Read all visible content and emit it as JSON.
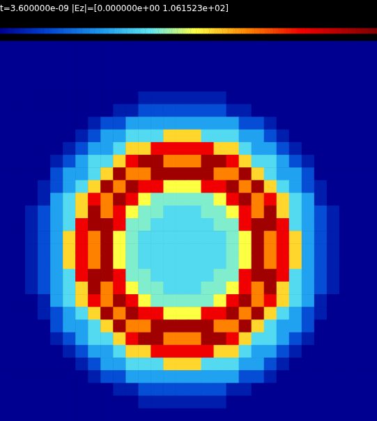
{
  "chart_data": {
    "type": "heatmap",
    "title": "t=3.600000e-09 |Ez|=[0.000000e+00 1.061523e+02]",
    "colorbar": {
      "range": [
        0,
        106.1523
      ]
    },
    "tick_labels": false,
    "cells": [
      [
        0,
        0,
        0,
        0,
        0,
        0,
        0,
        0,
        0,
        0,
        0,
        0,
        0,
        0,
        0,
        0,
        0,
        0,
        0,
        0,
        0,
        0,
        0,
        0,
        0,
        0,
        0,
        0,
        0,
        0
      ],
      [
        0,
        0,
        0,
        0,
        0,
        0,
        0,
        0,
        0,
        0,
        0,
        0,
        0,
        0,
        0,
        0,
        0,
        0,
        0,
        0,
        0,
        0,
        0,
        0,
        0,
        0,
        0,
        0,
        0,
        0
      ],
      [
        0,
        0,
        0,
        0,
        0,
        0,
        0,
        0,
        0,
        0,
        0,
        0,
        0,
        0,
        0,
        0,
        0,
        0,
        0,
        0,
        0,
        0,
        0,
        0,
        0,
        0,
        0,
        0,
        0,
        0
      ],
      [
        0,
        0,
        0,
        0,
        0,
        0,
        0,
        0,
        0,
        0,
        0,
        0,
        0,
        0,
        0,
        0,
        0,
        0,
        0,
        0,
        0,
        0,
        0,
        0,
        0,
        0,
        0,
        0,
        0,
        0
      ],
      [
        0,
        0,
        0,
        0,
        0,
        0,
        0,
        0,
        0,
        0,
        0,
        6,
        6,
        6,
        6,
        6,
        6,
        6,
        0,
        0,
        0,
        0,
        0,
        0,
        0,
        0,
        0,
        0,
        0,
        0
      ],
      [
        0,
        0,
        0,
        0,
        0,
        0,
        0,
        0,
        0,
        6,
        6,
        15,
        15,
        15,
        15,
        15,
        15,
        15,
        6,
        6,
        0,
        0,
        0,
        0,
        0,
        0,
        0,
        0,
        0,
        0
      ],
      [
        0,
        0,
        0,
        0,
        0,
        0,
        0,
        6,
        15,
        15,
        30,
        30,
        30,
        30,
        30,
        30,
        30,
        30,
        30,
        15,
        15,
        6,
        0,
        0,
        0,
        0,
        0,
        0,
        0,
        0
      ],
      [
        0,
        0,
        0,
        0,
        0,
        0,
        6,
        15,
        30,
        30,
        40,
        40,
        40,
        60,
        60,
        60,
        40,
        40,
        40,
        30,
        30,
        15,
        6,
        0,
        0,
        0,
        0,
        0,
        0,
        0
      ],
      [
        0,
        0,
        0,
        0,
        0,
        6,
        15,
        30,
        30,
        40,
        60,
        60,
        85,
        85,
        85,
        85,
        85,
        60,
        60,
        40,
        30,
        30,
        15,
        6,
        0,
        0,
        0,
        0,
        0,
        0
      ],
      [
        0,
        0,
        0,
        0,
        6,
        15,
        30,
        40,
        40,
        60,
        85,
        100,
        100,
        70,
        70,
        70,
        100,
        100,
        85,
        60,
        40,
        40,
        30,
        15,
        6,
        0,
        0,
        0,
        0,
        0
      ],
      [
        0,
        0,
        0,
        0,
        15,
        30,
        30,
        40,
        60,
        100,
        70,
        70,
        100,
        100,
        100,
        100,
        100,
        70,
        70,
        100,
        60,
        40,
        30,
        30,
        15,
        0,
        0,
        0,
        0,
        0
      ],
      [
        0,
        0,
        0,
        6,
        15,
        30,
        40,
        60,
        100,
        70,
        100,
        85,
        85,
        55,
        55,
        55,
        85,
        85,
        100,
        70,
        100,
        60,
        40,
        30,
        15,
        6,
        0,
        0,
        0,
        0
      ],
      [
        0,
        0,
        0,
        6,
        30,
        40,
        60,
        85,
        70,
        100,
        85,
        55,
        45,
        45,
        45,
        45,
        45,
        55,
        85,
        100,
        70,
        85,
        60,
        40,
        30,
        6,
        0,
        0,
        0,
        0
      ],
      [
        0,
        0,
        6,
        15,
        30,
        40,
        60,
        100,
        70,
        85,
        55,
        45,
        45,
        40,
        40,
        40,
        45,
        45,
        55,
        85,
        70,
        100,
        60,
        40,
        30,
        15,
        6,
        0,
        0,
        0
      ],
      [
        0,
        0,
        6,
        15,
        30,
        40,
        85,
        100,
        100,
        85,
        45,
        45,
        40,
        40,
        40,
        40,
        40,
        45,
        45,
        85,
        100,
        100,
        85,
        40,
        30,
        15,
        6,
        0,
        0,
        0
      ],
      [
        0,
        0,
        6,
        15,
        30,
        60,
        85,
        70,
        100,
        55,
        45,
        40,
        40,
        40,
        40,
        40,
        40,
        40,
        45,
        55,
        100,
        70,
        85,
        60,
        30,
        15,
        6,
        0,
        0,
        0
      ],
      [
        0,
        0,
        6,
        15,
        30,
        60,
        85,
        70,
        100,
        55,
        45,
        40,
        40,
        40,
        40,
        40,
        40,
        40,
        45,
        55,
        100,
        70,
        85,
        60,
        30,
        15,
        6,
        0,
        0,
        0
      ],
      [
        0,
        0,
        6,
        15,
        30,
        60,
        85,
        70,
        100,
        55,
        45,
        40,
        40,
        40,
        40,
        40,
        40,
        40,
        45,
        55,
        100,
        70,
        85,
        60,
        30,
        15,
        6,
        0,
        0,
        0
      ],
      [
        0,
        0,
        6,
        15,
        30,
        40,
        85,
        100,
        100,
        85,
        45,
        45,
        40,
        40,
        40,
        40,
        40,
        45,
        45,
        85,
        100,
        100,
        85,
        40,
        30,
        15,
        6,
        0,
        0,
        0
      ],
      [
        0,
        0,
        6,
        15,
        30,
        40,
        60,
        100,
        70,
        85,
        55,
        45,
        45,
        40,
        40,
        40,
        45,
        45,
        55,
        85,
        70,
        100,
        60,
        40,
        30,
        15,
        6,
        0,
        0,
        0
      ],
      [
        0,
        0,
        0,
        6,
        30,
        40,
        60,
        85,
        70,
        100,
        85,
        55,
        45,
        45,
        45,
        45,
        45,
        55,
        85,
        100,
        70,
        85,
        60,
        40,
        30,
        6,
        0,
        0,
        0,
        0
      ],
      [
        0,
        0,
        0,
        6,
        15,
        30,
        40,
        60,
        100,
        70,
        100,
        85,
        85,
        55,
        55,
        55,
        85,
        85,
        100,
        70,
        100,
        60,
        40,
        30,
        15,
        6,
        0,
        0,
        0,
        0
      ],
      [
        0,
        0,
        0,
        0,
        15,
        30,
        30,
        40,
        60,
        100,
        70,
        70,
        100,
        100,
        100,
        100,
        100,
        70,
        70,
        100,
        60,
        40,
        30,
        30,
        15,
        0,
        0,
        0,
        0,
        0
      ],
      [
        0,
        0,
        0,
        0,
        6,
        15,
        30,
        40,
        40,
        60,
        85,
        100,
        100,
        70,
        70,
        70,
        100,
        100,
        85,
        60,
        40,
        40,
        30,
        15,
        6,
        0,
        0,
        0,
        0,
        0
      ],
      [
        0,
        0,
        0,
        0,
        0,
        6,
        15,
        30,
        30,
        40,
        60,
        60,
        85,
        85,
        85,
        85,
        85,
        60,
        60,
        40,
        30,
        30,
        15,
        6,
        0,
        0,
        0,
        0,
        0,
        0
      ],
      [
        0,
        0,
        0,
        0,
        0,
        0,
        6,
        15,
        30,
        30,
        40,
        40,
        40,
        60,
        60,
        60,
        40,
        40,
        40,
        30,
        30,
        15,
        6,
        0,
        0,
        0,
        0,
        0,
        0,
        0
      ],
      [
        0,
        0,
        0,
        0,
        0,
        0,
        0,
        6,
        15,
        15,
        30,
        30,
        30,
        30,
        30,
        30,
        30,
        30,
        30,
        15,
        15,
        6,
        0,
        0,
        0,
        0,
        0,
        0,
        0,
        0
      ],
      [
        0,
        0,
        0,
        0,
        0,
        0,
        0,
        0,
        0,
        6,
        6,
        15,
        15,
        15,
        15,
        15,
        15,
        15,
        6,
        6,
        0,
        0,
        0,
        0,
        0,
        0,
        0,
        0,
        0,
        0
      ],
      [
        0,
        0,
        0,
        0,
        0,
        0,
        0,
        0,
        0,
        0,
        0,
        6,
        6,
        6,
        6,
        6,
        6,
        6,
        0,
        0,
        0,
        0,
        0,
        0,
        0,
        0,
        0,
        0,
        0,
        0
      ],
      [
        0,
        0,
        0,
        0,
        0,
        0,
        0,
        0,
        0,
        0,
        0,
        0,
        0,
        0,
        0,
        0,
        0,
        0,
        0,
        0,
        0,
        0,
        0,
        0,
        0,
        0,
        0,
        0,
        0,
        0
      ]
    ]
  }
}
